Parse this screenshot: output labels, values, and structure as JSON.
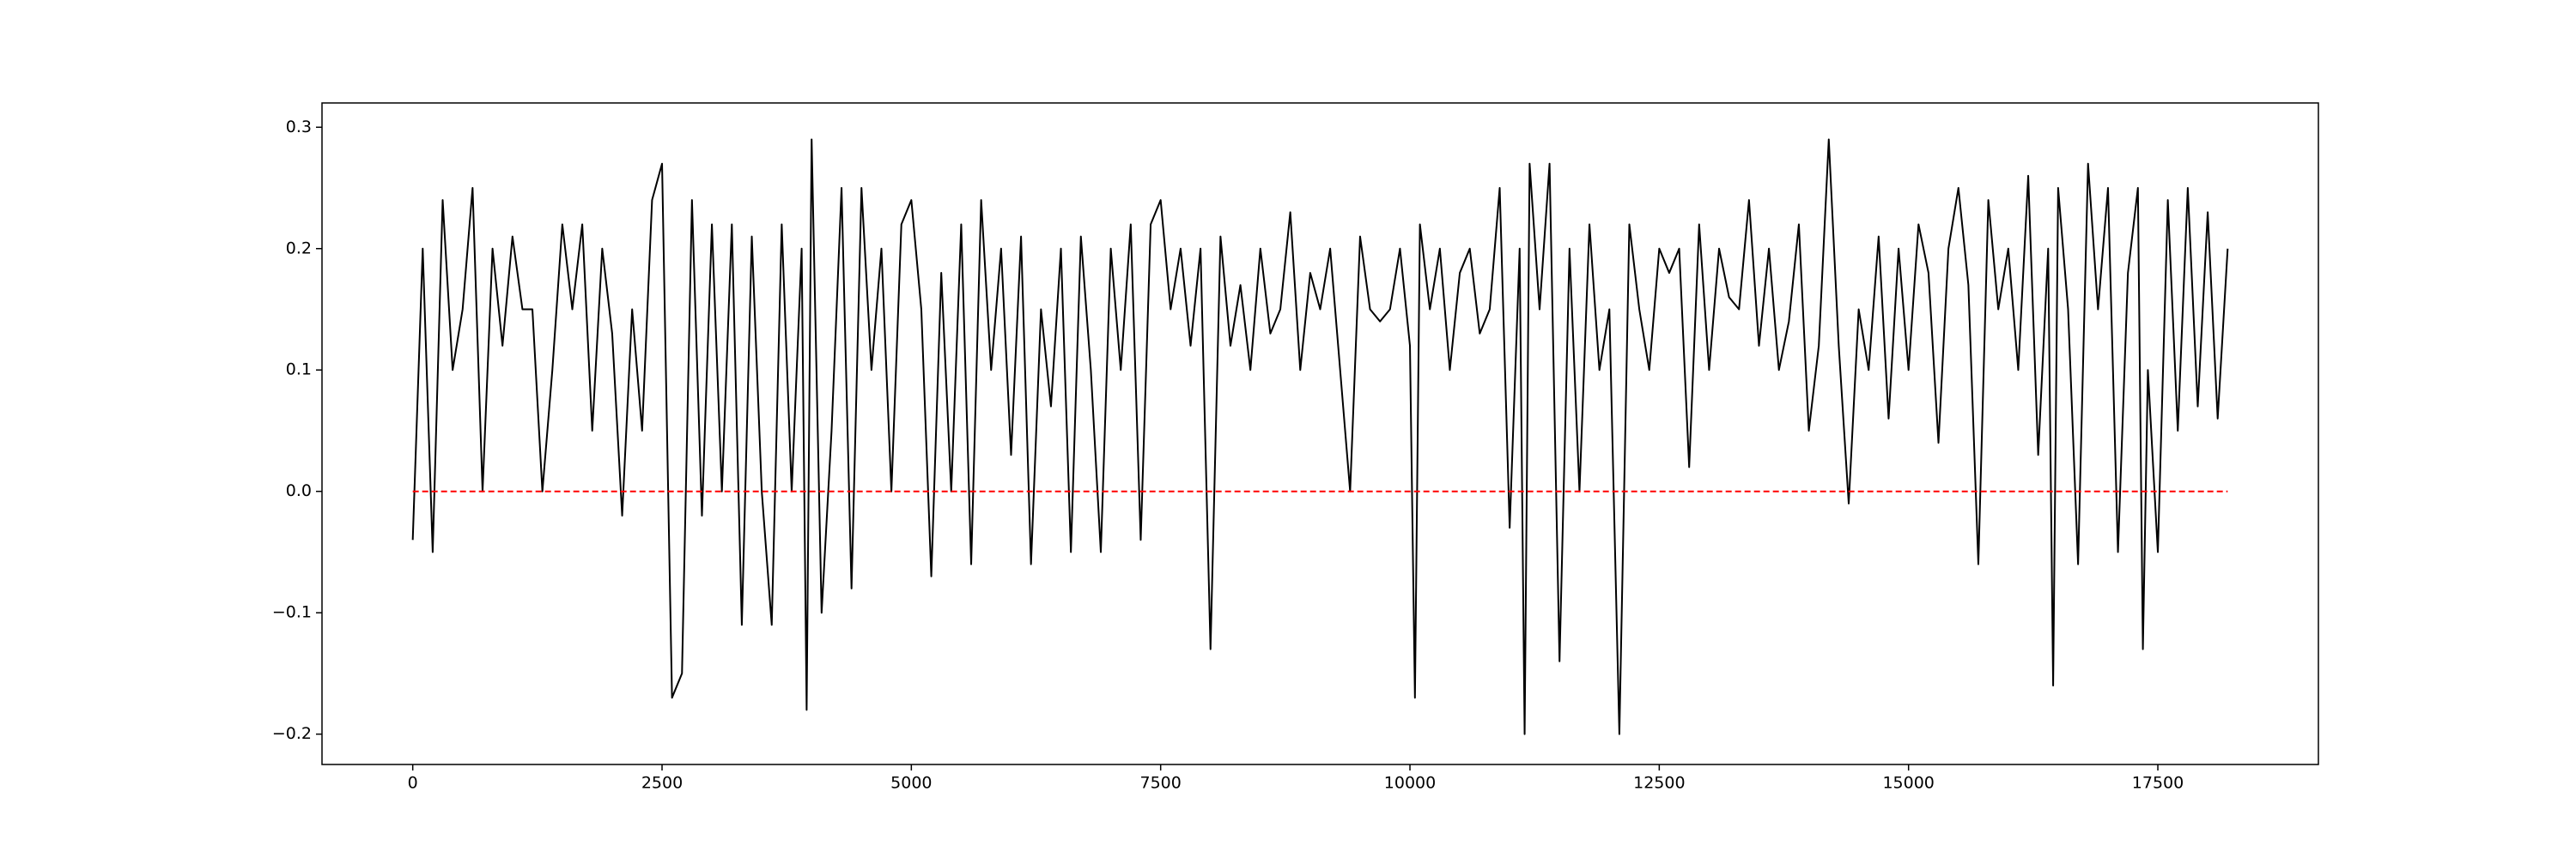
{
  "chart_data": {
    "type": "line",
    "x": [
      0,
      100,
      200,
      300,
      400,
      500,
      600,
      700,
      800,
      900,
      1000,
      1100,
      1200,
      1300,
      1400,
      1500,
      1600,
      1700,
      1800,
      1900,
      2000,
      2100,
      2200,
      2300,
      2400,
      2500,
      2600,
      2700,
      2800,
      2900,
      3000,
      3100,
      3200,
      3300,
      3400,
      3500,
      3600,
      3700,
      3800,
      3900,
      3950,
      4000,
      4100,
      4200,
      4300,
      4400,
      4500,
      4600,
      4700,
      4800,
      4900,
      5000,
      5100,
      5200,
      5300,
      5400,
      5500,
      5600,
      5700,
      5800,
      5900,
      6000,
      6100,
      6200,
      6300,
      6400,
      6500,
      6600,
      6700,
      6800,
      6900,
      7000,
      7100,
      7200,
      7300,
      7400,
      7500,
      7600,
      7700,
      7800,
      7900,
      8000,
      8100,
      8200,
      8300,
      8400,
      8500,
      8600,
      8700,
      8800,
      8900,
      9000,
      9100,
      9200,
      9300,
      9400,
      9500,
      9600,
      9700,
      9800,
      9900,
      10000,
      10050,
      10100,
      10200,
      10300,
      10400,
      10500,
      10600,
      10700,
      10800,
      10900,
      11000,
      11100,
      11150,
      11200,
      11300,
      11400,
      11500,
      11600,
      11700,
      11800,
      11900,
      12000,
      12100,
      12200,
      12300,
      12400,
      12500,
      12600,
      12700,
      12800,
      12900,
      13000,
      13100,
      13200,
      13300,
      13400,
      13500,
      13600,
      13700,
      13800,
      13900,
      14000,
      14100,
      14200,
      14300,
      14400,
      14500,
      14600,
      14700,
      14800,
      14900,
      15000,
      15100,
      15200,
      15300,
      15400,
      15500,
      15600,
      15700,
      15800,
      15900,
      16000,
      16100,
      16200,
      16300,
      16400,
      16450,
      16500,
      16600,
      16700,
      16800,
      16900,
      17000,
      17100,
      17200,
      17300,
      17350,
      17400,
      17500,
      17600,
      17700,
      17800,
      17900,
      18000,
      18100,
      18200
    ],
    "series": [
      {
        "color": "#000000",
        "values": [
          -0.04,
          0.2,
          -0.05,
          0.24,
          0.1,
          0.15,
          0.25,
          0.0,
          0.2,
          0.12,
          0.21,
          0.15,
          0.15,
          0.0,
          0.1,
          0.22,
          0.15,
          0.22,
          0.05,
          0.2,
          0.13,
          -0.02,
          0.15,
          0.05,
          0.24,
          0.27,
          -0.17,
          -0.15,
          0.24,
          -0.02,
          0.22,
          0.0,
          0.22,
          -0.11,
          0.21,
          0.0,
          -0.11,
          0.22,
          0.0,
          0.2,
          -0.18,
          0.29,
          -0.1,
          0.05,
          0.25,
          -0.08,
          0.25,
          0.1,
          0.2,
          0.0,
          0.22,
          0.24,
          0.15,
          -0.07,
          0.18,
          0.0,
          0.22,
          -0.06,
          0.24,
          0.1,
          0.2,
          0.03,
          0.21,
          -0.06,
          0.15,
          0.07,
          0.2,
          -0.05,
          0.21,
          0.1,
          -0.05,
          0.2,
          0.1,
          0.22,
          -0.04,
          0.22,
          0.24,
          0.15,
          0.2,
          0.12,
          0.2,
          -0.13,
          0.21,
          0.12,
          0.17,
          0.1,
          0.2,
          0.13,
          0.15,
          0.23,
          0.1,
          0.18,
          0.15,
          0.2,
          0.1,
          0.0,
          0.21,
          0.15,
          0.14,
          0.15,
          0.2,
          0.12,
          -0.17,
          0.22,
          0.15,
          0.2,
          0.1,
          0.18,
          0.2,
          0.13,
          0.15,
          0.25,
          -0.03,
          0.2,
          -0.2,
          0.27,
          0.15,
          0.27,
          -0.14,
          0.2,
          0.0,
          0.22,
          0.1,
          0.15,
          -0.2,
          0.22,
          0.15,
          0.1,
          0.2,
          0.18,
          0.2,
          0.02,
          0.22,
          0.1,
          0.2,
          0.16,
          0.15,
          0.24,
          0.12,
          0.2,
          0.1,
          0.14,
          0.22,
          0.05,
          0.12,
          0.29,
          0.12,
          -0.01,
          0.15,
          0.1,
          0.21,
          0.06,
          0.2,
          0.1,
          0.22,
          0.18,
          0.04,
          0.2,
          0.25,
          0.17,
          -0.06,
          0.24,
          0.15,
          0.2,
          0.1,
          0.26,
          0.03,
          0.2,
          -0.16,
          0.25,
          0.15,
          -0.06,
          0.27,
          0.15,
          0.25,
          -0.05,
          0.18,
          0.25,
          -0.13,
          0.1,
          -0.05,
          0.24,
          0.05,
          0.25,
          0.07,
          0.23,
          0.06,
          0.2
        ]
      }
    ],
    "reference_line": {
      "y": 0,
      "x": [
        0,
        18200
      ],
      "color": "#ff0000",
      "dashed": true
    },
    "xlim": [
      -910,
      19110
    ],
    "ylim": [
      -0.225,
      0.32
    ],
    "xticks": [
      0,
      2500,
      5000,
      7500,
      10000,
      12500,
      15000,
      17500
    ],
    "yticks": [
      {
        "value": -0.2,
        "label": "−0.2"
      },
      {
        "value": -0.1,
        "label": "−0.1"
      },
      {
        "value": 0,
        "label": "0.0"
      },
      0.1,
      0.2,
      0.3
    ]
  }
}
